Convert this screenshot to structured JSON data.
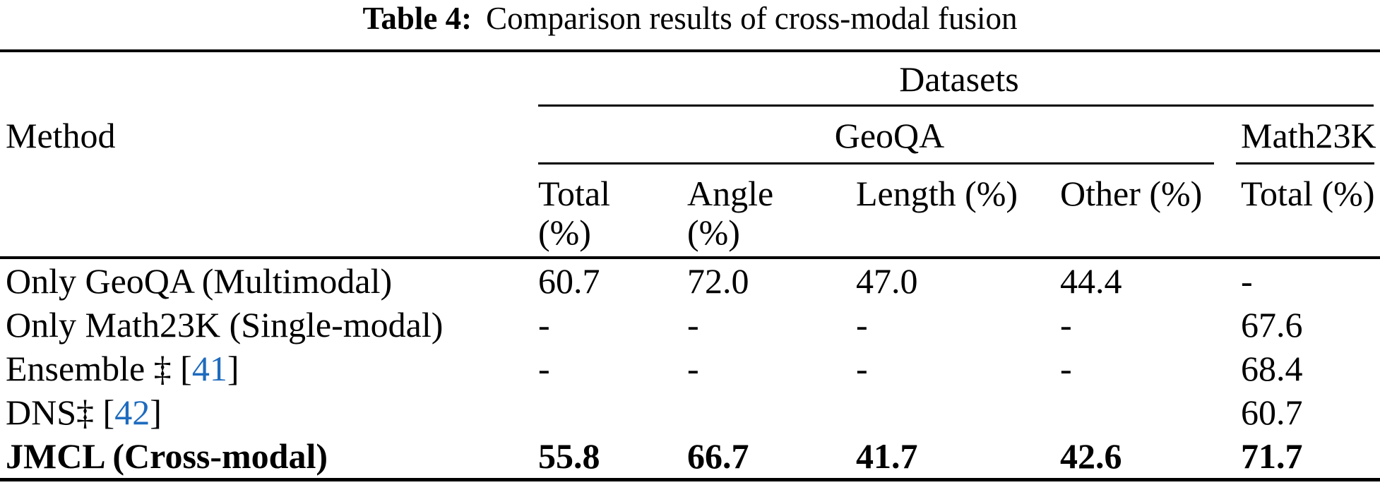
{
  "caption": {
    "label": "Table 4:",
    "text": "Comparison results of cross-modal fusion"
  },
  "table": {
    "group_header": "Datasets",
    "method_header": "Method",
    "dataset_groups": {
      "geoqa": "GeoQA",
      "math23k": "Math23K"
    },
    "columns": [
      {
        "line1": "Total",
        "line2": "(%)"
      },
      {
        "line1": "Angle",
        "line2": "(%)"
      },
      {
        "line1": "Length (%)",
        "line2": ""
      },
      {
        "line1": "Other (%)",
        "line2": ""
      },
      {
        "line1": "Total (%)",
        "line2": ""
      }
    ],
    "rows": [
      {
        "method": {
          "pre": "Only GeoQA (Multimodal)",
          "ref": "",
          "post": ""
        },
        "values": [
          "60.7",
          "72.0",
          "47.0",
          "44.4",
          "-"
        ]
      },
      {
        "method": {
          "pre": "Only Math23K (Single-modal)",
          "ref": "",
          "post": ""
        },
        "values": [
          "-",
          "-",
          "-",
          "-",
          "67.6"
        ]
      },
      {
        "method": {
          "pre": "Ensemble ‡ [",
          "ref": "41",
          "post": "]"
        },
        "values": [
          "-",
          "-",
          "-",
          "-",
          "68.4"
        ]
      },
      {
        "method": {
          "pre": "DNS‡ [",
          "ref": "42",
          "post": "]"
        },
        "values": [
          "",
          "",
          "",
          "",
          "60.7"
        ]
      },
      {
        "method": {
          "pre": "JMCL (Cross-modal)",
          "ref": "",
          "post": ""
        },
        "values": [
          "55.8",
          "66.7",
          "41.7",
          "42.6",
          "71.7"
        ]
      }
    ],
    "colors": {
      "text": "#000000",
      "rule": "#000000",
      "link_blue": "#1e6bbe"
    }
  }
}
